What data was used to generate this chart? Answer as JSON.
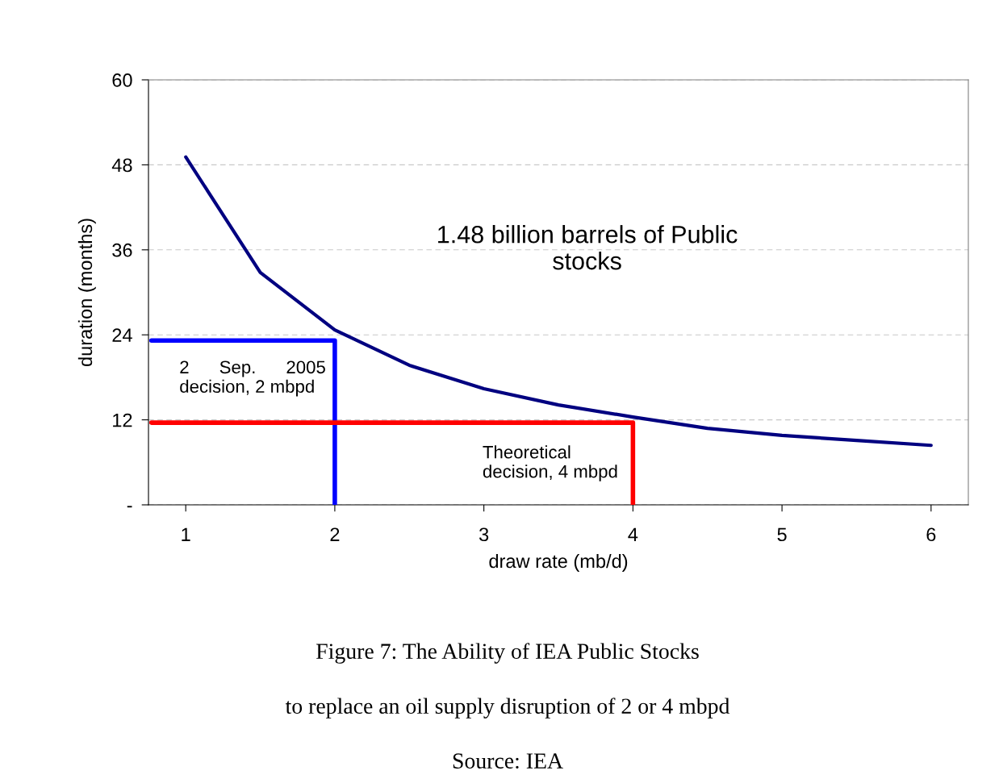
{
  "chart_data": {
    "type": "line",
    "xlabel": "draw rate (mb/d)",
    "ylabel": "duration (months)",
    "series": [
      {
        "color": "#000080",
        "x": [
          1,
          1.5,
          2,
          2.5,
          3,
          3.5,
          4,
          4.5,
          5,
          5.5,
          6
        ],
        "values": [
          49.1,
          32.8,
          24.7,
          19.7,
          16.4,
          14.1,
          12.4,
          10.8,
          9.8,
          9.1,
          8.4
        ]
      },
      {
        "color": "#0000ff",
        "x": [
          0.77,
          2,
          2
        ],
        "values": [
          23.2,
          23.2,
          0
        ]
      },
      {
        "color": "#ff0000",
        "x": [
          0.77,
          4,
          4
        ],
        "values": [
          11.6,
          11.6,
          0
        ]
      }
    ],
    "xlim": [
      0.75,
      6.25
    ],
    "xticks": [
      1,
      2,
      3,
      4,
      5,
      6
    ],
    "ylim": [
      0,
      60
    ],
    "yticks": [
      {
        "value": 0,
        "label": "-"
      },
      12,
      24,
      36,
      48,
      60
    ],
    "grid": "y",
    "marker": "none",
    "line_style": "solid",
    "annotations": [
      "1.48 billion barrels of Public\nstocks",
      {
        "text": "2      Sep.      2005\ndecision, 2 mbpd",
        "x": 2,
        "y": 23.2
      },
      {
        "text": "Theoretical\ndecision, 4 mbpd",
        "x": 4,
        "y": 11.6
      },
      "Figure 7: The Ability of IEA Public Stocks",
      "to replace an oil supply disruption of 2 or 4 mbpd",
      "Source: IEA"
    ]
  }
}
